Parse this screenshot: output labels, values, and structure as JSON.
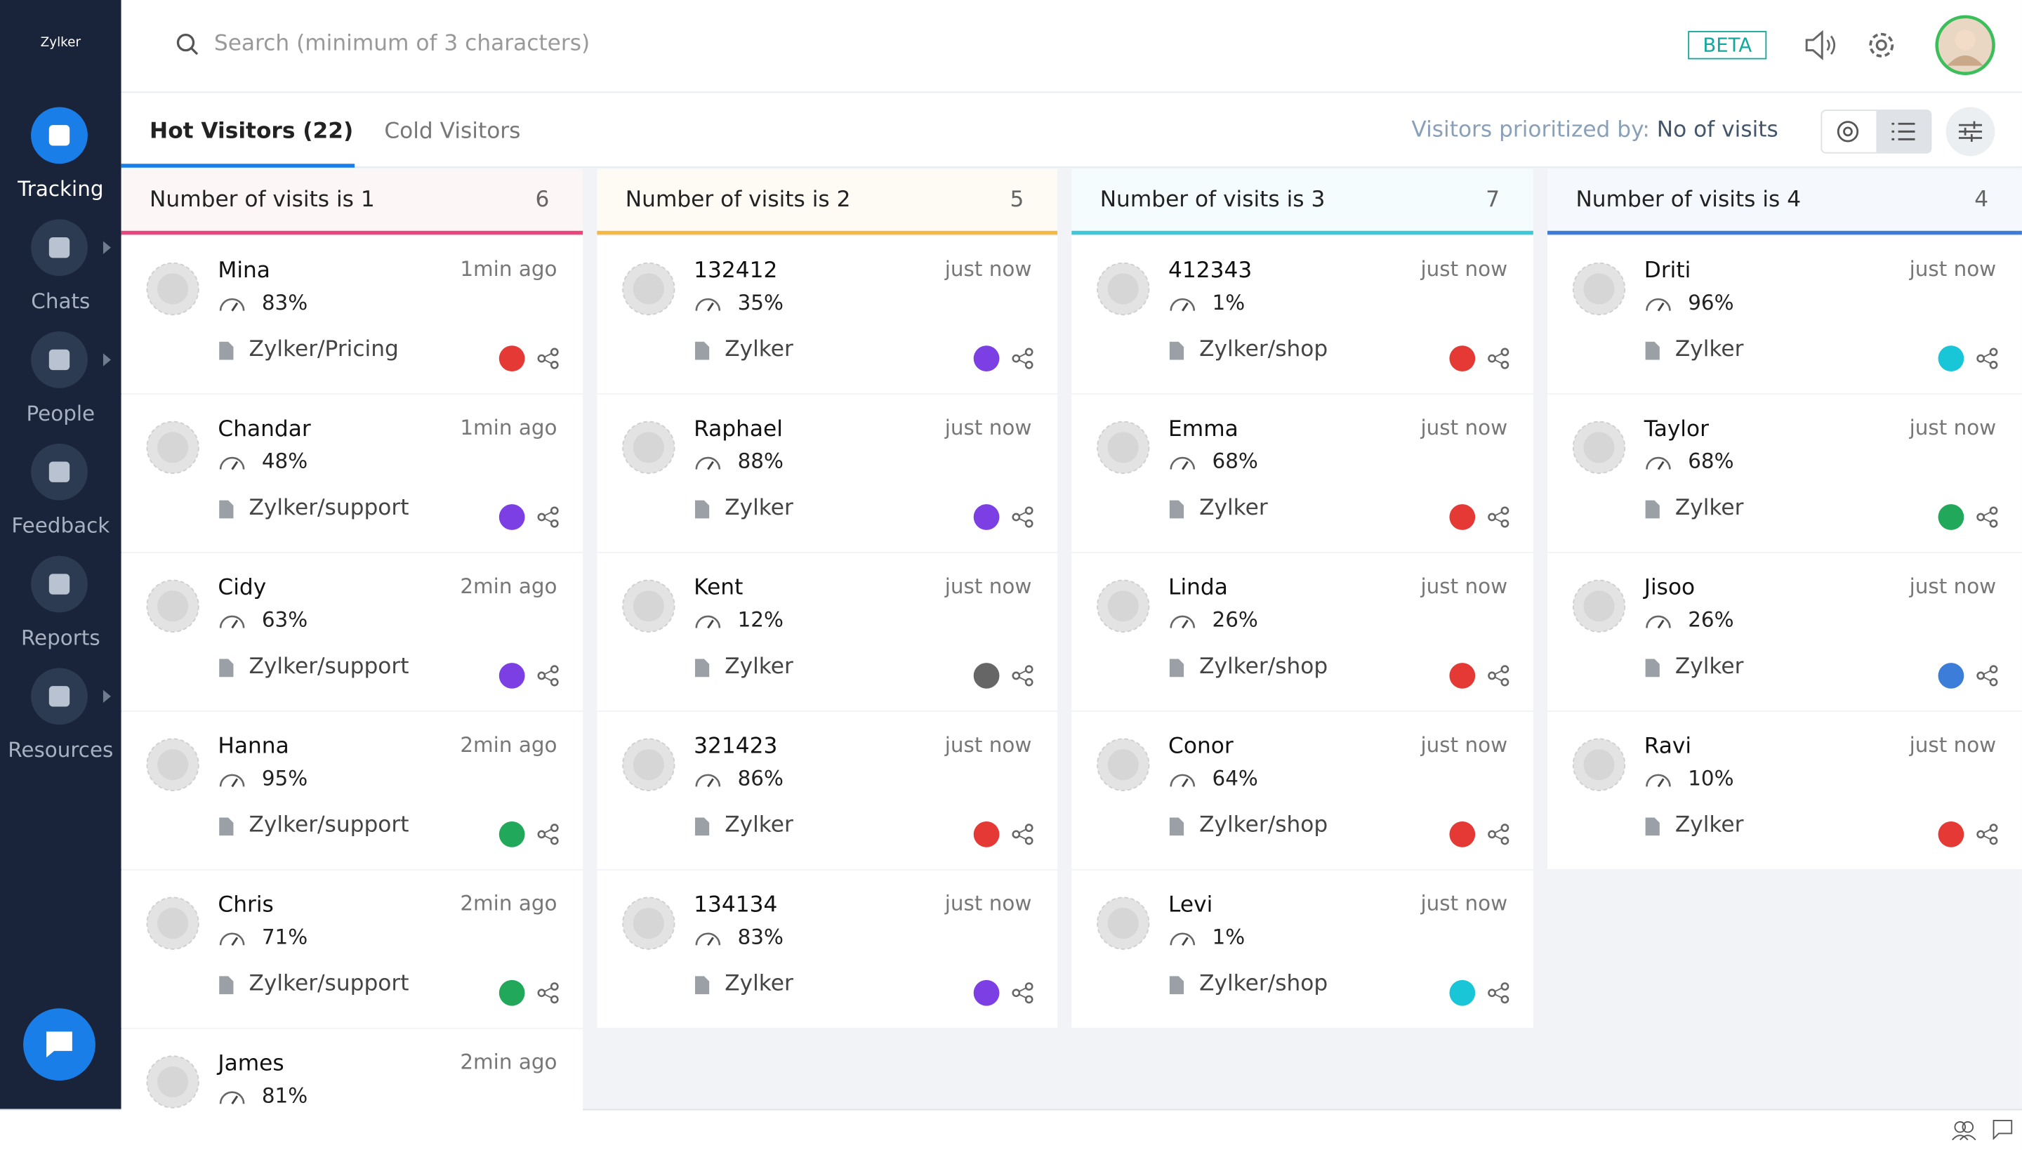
{
  "brand": "Zylker",
  "nav": [
    "Tracking",
    "Chats",
    "People",
    "Feedback",
    "Reports",
    "Resources"
  ],
  "search_placeholder": "Search (minimum of 3 characters)",
  "badge": "BETA",
  "tabs": [
    "Hot Visitors (22)",
    "Cold Visitors"
  ],
  "priority": {
    "label": "Visitors prioritized by:",
    "value": "No of visits"
  },
  "columns": [
    {
      "title": "Number of visits is 1",
      "count": "6",
      "color": "#e8467c",
      "header_bg": "#fdf6f7",
      "visitors": [
        {
          "name": "Mina",
          "time": "1min ago",
          "score": "83%",
          "page": "Zylker/Pricing",
          "badge": "#e53935"
        },
        {
          "name": "Chandar",
          "time": "1min ago",
          "score": "48%",
          "page": "Zylker/support",
          "badge": "#7b3fe4"
        },
        {
          "name": "Cidy",
          "time": "2min ago",
          "score": "63%",
          "page": "Zylker/support",
          "badge": "#7b3fe4"
        },
        {
          "name": "Hanna",
          "time": "2min ago",
          "score": "95%",
          "page": "Zylker/support",
          "badge": "#21a85a"
        },
        {
          "name": "Chris",
          "time": "2min ago",
          "score": "71%",
          "page": "Zylker/support",
          "badge": "#21a85a"
        },
        {
          "name": "James",
          "time": "2min ago",
          "score": "81%"
        }
      ]
    },
    {
      "title": "Number of visits is 2",
      "count": "5",
      "color": "#f5b942",
      "header_bg": "#fefbf5",
      "visitors": [
        {
          "name": "132412",
          "time": "just now",
          "score": "35%",
          "page": "Zylker",
          "badge": "#7b3fe4"
        },
        {
          "name": "Raphael",
          "time": "just now",
          "score": "88%",
          "page": "Zylker",
          "badge": "#7b3fe4"
        },
        {
          "name": "Kent",
          "time": "just now",
          "score": "12%",
          "page": "Zylker",
          "badge": "#666666"
        },
        {
          "name": "321423",
          "time": "just now",
          "score": "86%",
          "page": "Zylker",
          "badge": "#e53935"
        },
        {
          "name": "134134",
          "time": "just now",
          "score": "83%",
          "page": "Zylker",
          "badge": "#7b3fe4"
        }
      ]
    },
    {
      "title": "Number of visits is 3",
      "count": "7",
      "color": "#3cc8d8",
      "header_bg": "#f4fcfd",
      "visitors": [
        {
          "name": "412343",
          "time": "just now",
          "score": "1%",
          "page": "Zylker/shop",
          "badge": "#e53935"
        },
        {
          "name": "Emma",
          "time": "just now",
          "score": "68%",
          "page": "Zylker",
          "badge": "#e53935"
        },
        {
          "name": "Linda",
          "time": "just now",
          "score": "26%",
          "page": "Zylker/shop",
          "badge": "#e53935"
        },
        {
          "name": "Conor",
          "time": "just now",
          "score": "64%",
          "page": "Zylker/shop",
          "badge": "#e53935"
        },
        {
          "name": "Levi",
          "time": "just now",
          "score": "1%",
          "page": "Zylker/shop",
          "badge": "#19c6d8"
        }
      ]
    },
    {
      "title": "Number of visits is 4",
      "count": "4",
      "color": "#3b7dd8",
      "header_bg": "#f5f8fc",
      "visitors": [
        {
          "name": "Driti",
          "time": "just now",
          "score": "96%",
          "page": "Zylker",
          "badge": "#19c6d8"
        },
        {
          "name": "Taylor",
          "time": "just now",
          "score": "68%",
          "page": "Zylker",
          "badge": "#21a85a"
        },
        {
          "name": "Jisoo",
          "time": "just now",
          "score": "26%",
          "page": "Zylker",
          "badge": "#3b7dd8"
        },
        {
          "name": "Ravi",
          "time": "just now",
          "score": "10%",
          "page": "Zylker",
          "badge": "#e53935"
        }
      ]
    }
  ]
}
